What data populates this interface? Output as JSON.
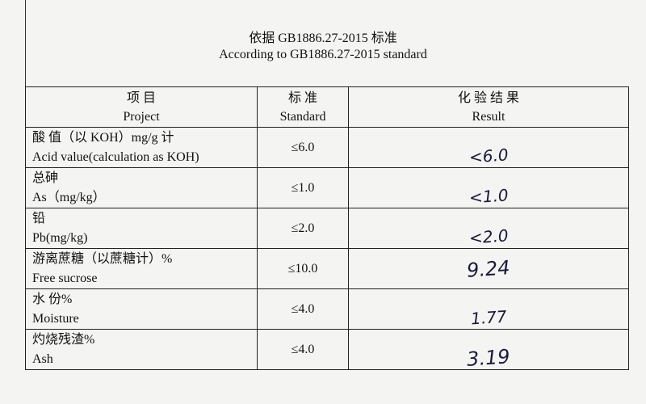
{
  "title_cn": "依据 GB1886.27-2015  标准",
  "title_en": "According to GB1886.27-2015 standard",
  "headers": {
    "project_cn": "项 目",
    "project_en": "Project",
    "standard_cn": "标 准",
    "standard_en": "Standard",
    "result_cn": "化 验 结 果",
    "result_en": "Result"
  },
  "rows": [
    {
      "cn": "酸 值（以 KOH）mg/g 计",
      "en": "Acid value(calculation as KOH)",
      "standard": "≤6.0",
      "result": "<6.0"
    },
    {
      "cn": "总砷",
      "en": "As（mg/kg）",
      "standard": "≤1.0",
      "result": "<1.0"
    },
    {
      "cn": "铅",
      "en": "Pb(mg/kg)",
      "standard": "≤2.0",
      "result": "<2.0"
    },
    {
      "cn": "游离蔗糖（以蔗糖计）%",
      "en": "Free sucrose",
      "standard": "≤10.0",
      "result": "9.24"
    },
    {
      "cn": "水 份%",
      "en": "Moisture",
      "standard": "≤4.0",
      "result": "1.77"
    },
    {
      "cn": "灼烧残渣%",
      "en": "Ash",
      "standard": "≤4.0",
      "result": "3.19"
    }
  ]
}
